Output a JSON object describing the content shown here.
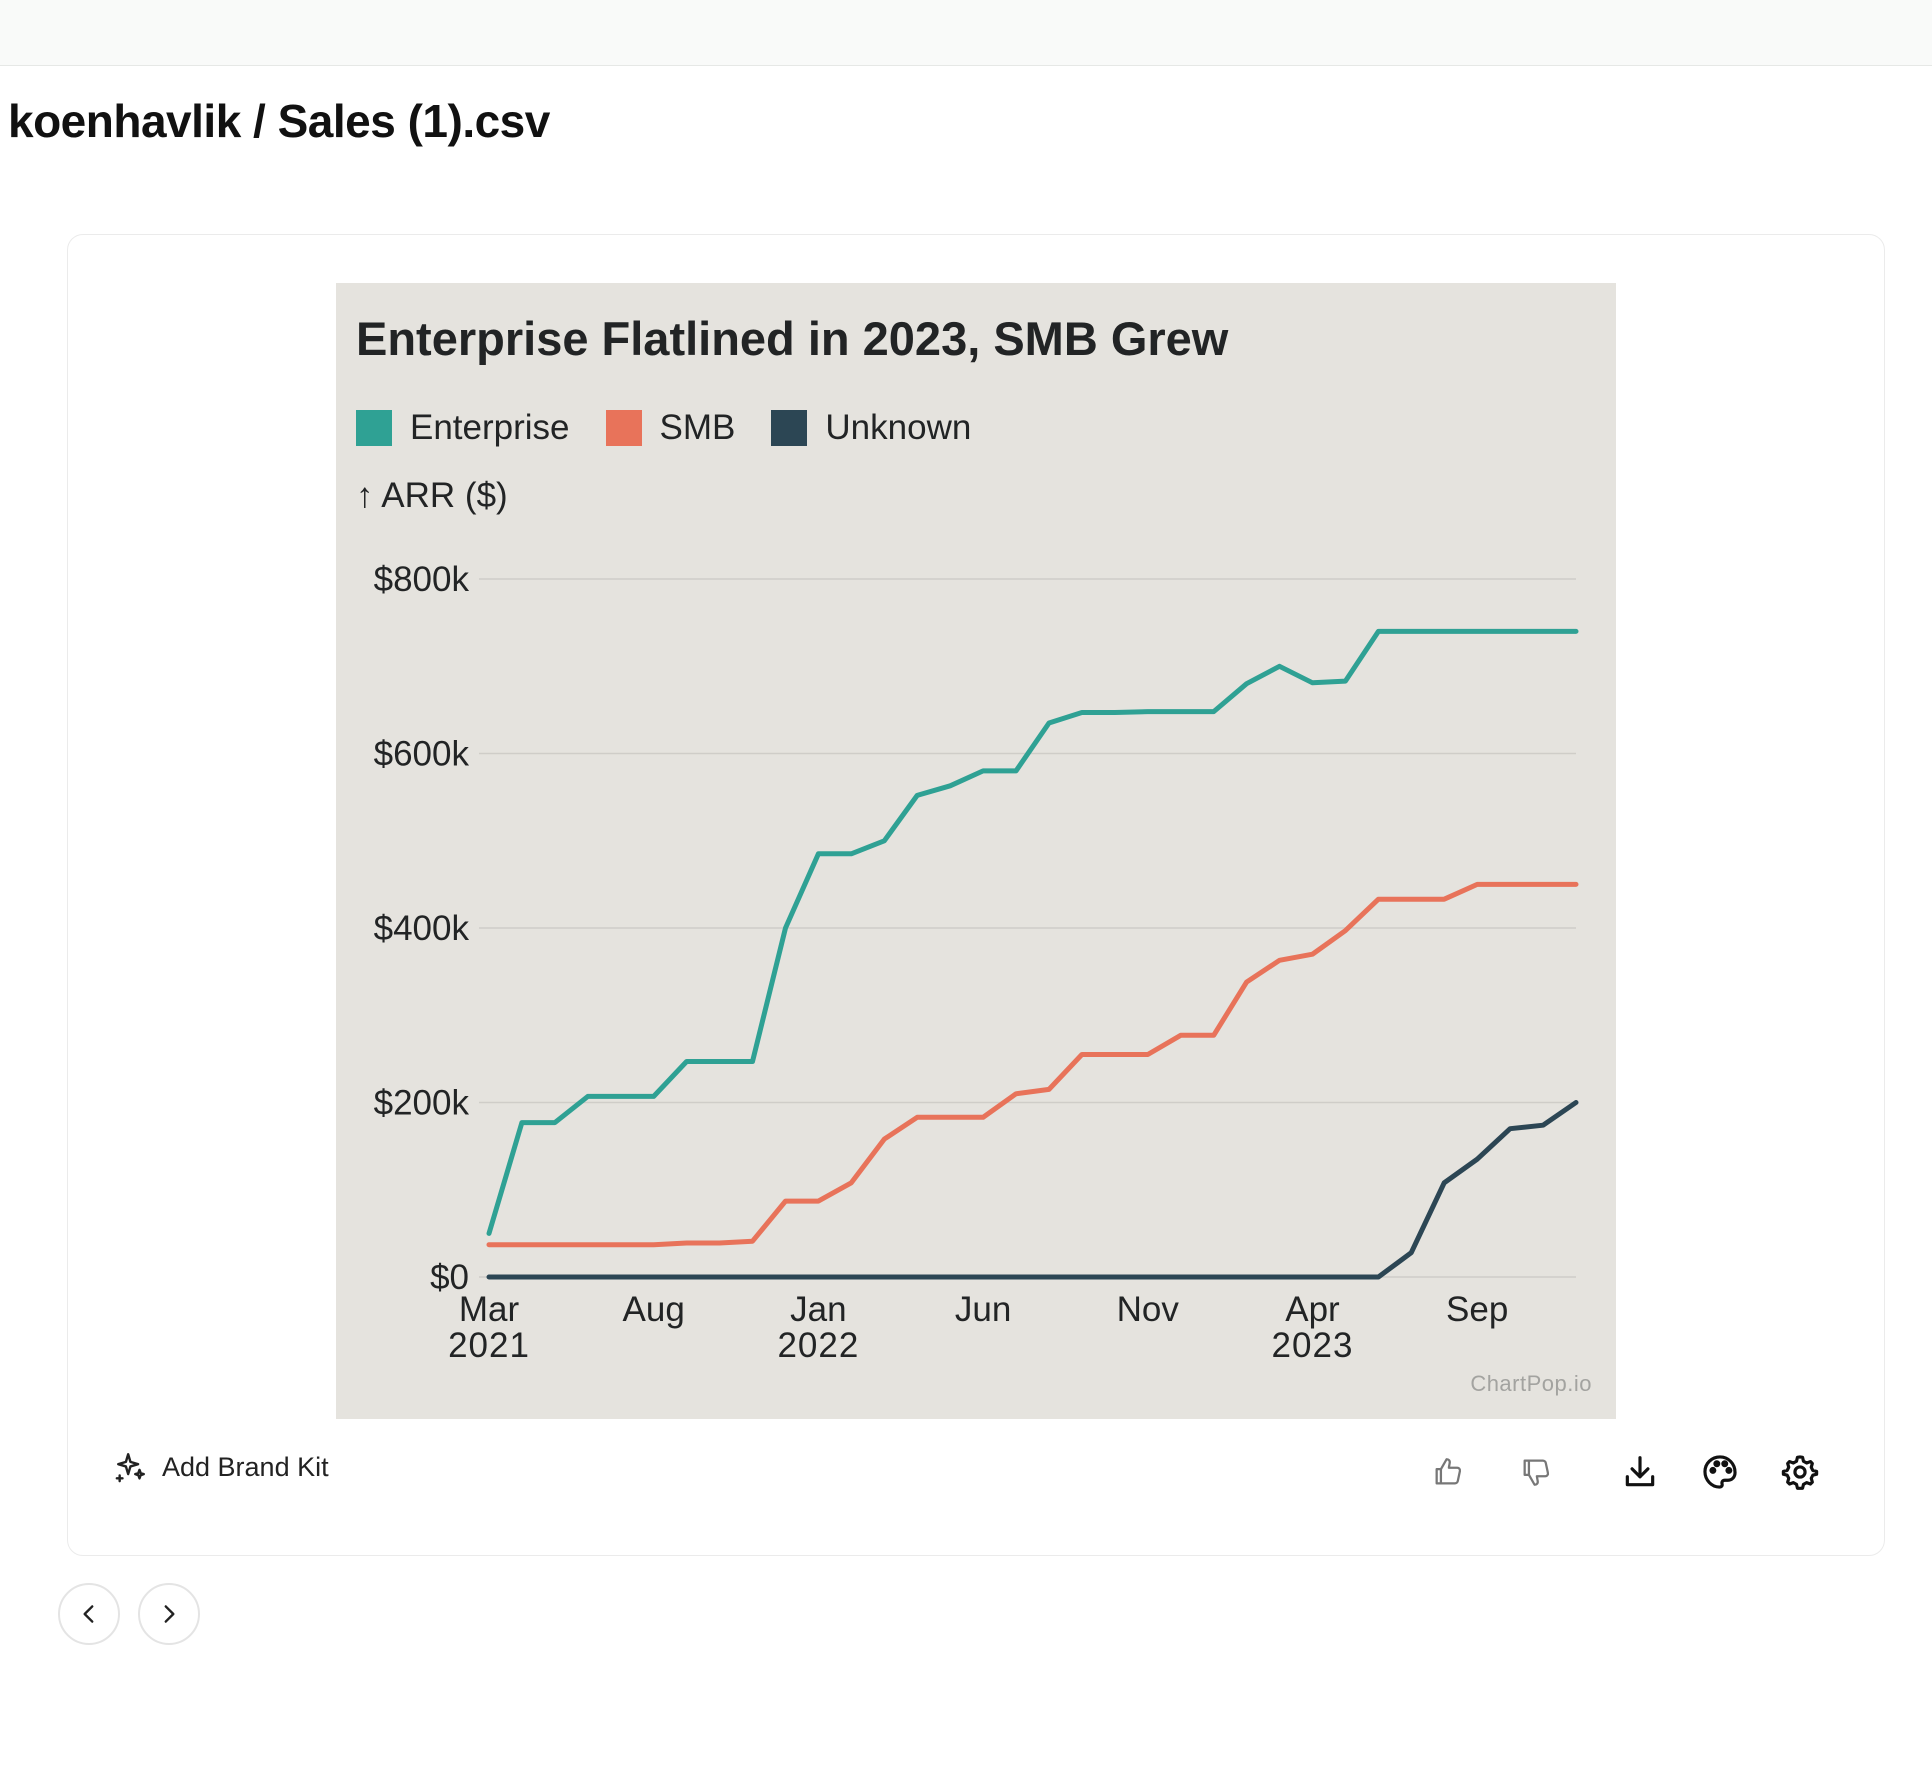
{
  "page": {
    "title": "koenhavlik / Sales (1).csv"
  },
  "toolbar": {
    "brand_kit_label": "Add Brand Kit"
  },
  "colors": {
    "enterprise": "#2fa194",
    "smb": "#e8735a",
    "unknown": "#2c4654",
    "chart_bg": "#e5e3de",
    "grid": "#cfcdc8",
    "text": "#222425"
  },
  "chart_data": {
    "type": "line",
    "title": "Enterprise Flatlined in 2023, SMB Grew",
    "ylabel": "↑ ARR ($)",
    "xlabel": "",
    "watermark": "ChartPop.io",
    "ylim": [
      0,
      800000
    ],
    "yticks": [
      {
        "value": 0,
        "label": "$0"
      },
      {
        "value": 200000,
        "label": "$200k"
      },
      {
        "value": 400000,
        "label": "$400k"
      },
      {
        "value": 600000,
        "label": "$600k"
      },
      {
        "value": 800000,
        "label": "$800k"
      }
    ],
    "x_months": [
      "2021-03",
      "2021-04",
      "2021-05",
      "2021-06",
      "2021-07",
      "2021-08",
      "2021-09",
      "2021-10",
      "2021-11",
      "2021-12",
      "2022-01",
      "2022-02",
      "2022-03",
      "2022-04",
      "2022-05",
      "2022-06",
      "2022-07",
      "2022-08",
      "2022-09",
      "2022-10",
      "2022-11",
      "2022-12",
      "2023-01",
      "2023-02",
      "2023-03",
      "2023-04",
      "2023-05",
      "2023-06",
      "2023-07",
      "2023-08",
      "2023-09",
      "2023-10",
      "2023-11",
      "2023-12"
    ],
    "xticks": [
      {
        "index": 0,
        "line1": "Mar",
        "line2": "2021"
      },
      {
        "index": 5,
        "line1": "Aug",
        "line2": ""
      },
      {
        "index": 10,
        "line1": "Jan",
        "line2": "2022"
      },
      {
        "index": 15,
        "line1": "Jun",
        "line2": ""
      },
      {
        "index": 20,
        "line1": "Nov",
        "line2": ""
      },
      {
        "index": 25,
        "line1": "Apr",
        "line2": "2023"
      },
      {
        "index": 30,
        "line1": "Sep",
        "line2": ""
      }
    ],
    "series": [
      {
        "name": "Enterprise",
        "color": "#2fa194",
        "values": [
          50000,
          177000,
          177000,
          207000,
          207000,
          207000,
          247000,
          247000,
          247000,
          400000,
          485000,
          485000,
          500000,
          552000,
          563000,
          580000,
          580000,
          635000,
          647000,
          647000,
          648000,
          648000,
          648000,
          680000,
          700000,
          681000,
          683000,
          740000,
          740000,
          740000,
          740000,
          740000,
          740000,
          740000
        ]
      },
      {
        "name": "SMB",
        "color": "#e8735a",
        "values": [
          37000,
          37000,
          37000,
          37000,
          37000,
          37000,
          39000,
          39000,
          41000,
          87000,
          87000,
          108000,
          158000,
          183000,
          183000,
          183000,
          210000,
          215000,
          255000,
          255000,
          255000,
          277000,
          277000,
          338000,
          363000,
          370000,
          397000,
          433000,
          433000,
          433000,
          450000,
          450000,
          450000,
          450000
        ]
      },
      {
        "name": "Unknown",
        "color": "#2c4654",
        "values": [
          0,
          0,
          0,
          0,
          0,
          0,
          0,
          0,
          0,
          0,
          0,
          0,
          0,
          0,
          0,
          0,
          0,
          0,
          0,
          0,
          0,
          0,
          0,
          0,
          0,
          0,
          0,
          0,
          28000,
          108000,
          135000,
          170000,
          174000,
          200000
        ]
      }
    ]
  }
}
